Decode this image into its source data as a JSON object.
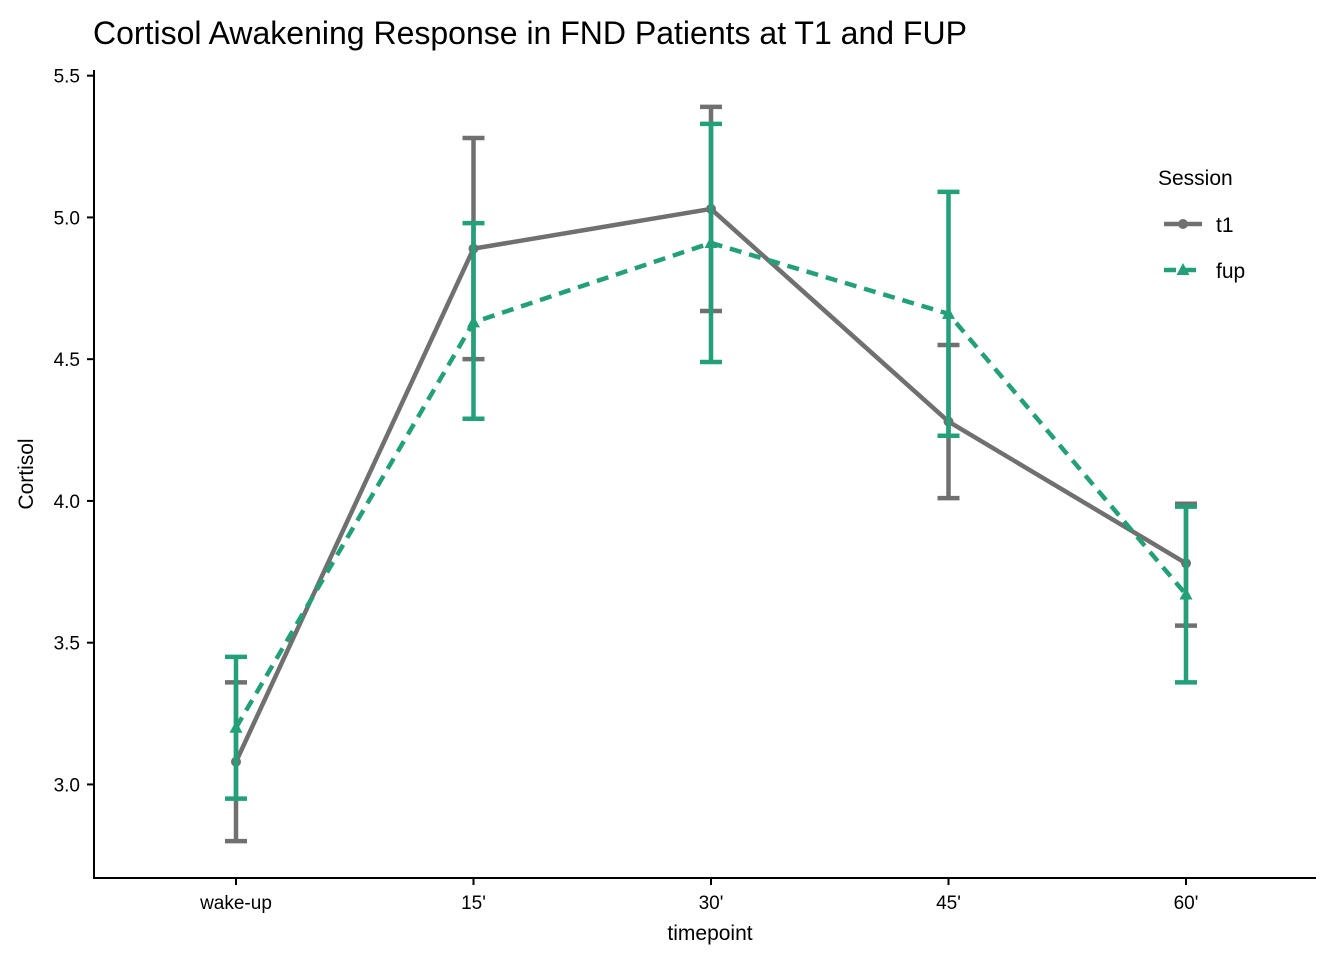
{
  "chart_data": {
    "type": "line",
    "title": "Cortisol Awakening Response in FND Patients at T1 and FUP",
    "xlabel": "timepoint",
    "ylabel": "Cortisol",
    "categories": [
      "wake-up",
      "15'",
      "30'",
      "45'",
      "60'"
    ],
    "ylim": [
      2.67,
      5.52
    ],
    "yticks": [
      3.0,
      3.5,
      4.0,
      4.5,
      5.0,
      5.5
    ],
    "ytick_labels": [
      "3.0",
      "3.5",
      "4.0",
      "4.5",
      "5.0",
      "5.5"
    ],
    "grid": false,
    "legend": {
      "title": "Session",
      "position": "right"
    },
    "series": [
      {
        "name": "t1",
        "color": "#707070",
        "line_style": "solid",
        "marker": "circle",
        "values": [
          3.08,
          4.89,
          5.03,
          4.28,
          3.78
        ],
        "err_low": [
          2.8,
          4.5,
          4.67,
          4.01,
          3.56
        ],
        "err_high": [
          3.36,
          5.28,
          5.39,
          4.55,
          3.99
        ]
      },
      {
        "name": "fup",
        "color": "#23A079",
        "line_style": "dashed",
        "marker": "triangle",
        "values": [
          3.2,
          4.63,
          4.91,
          4.66,
          3.67
        ],
        "err_low": [
          2.95,
          4.29,
          4.49,
          4.23,
          3.36
        ],
        "err_high": [
          3.45,
          4.98,
          5.33,
          5.09,
          3.98
        ]
      }
    ]
  }
}
